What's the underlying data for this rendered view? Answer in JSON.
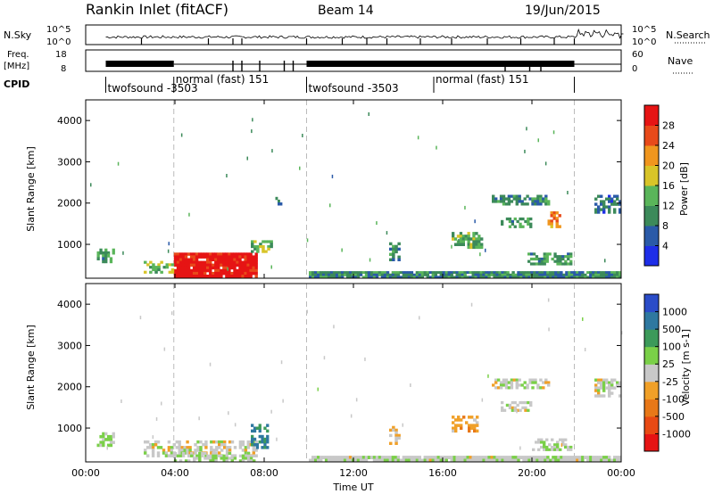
{
  "header": {
    "station": "Rankin Inlet (fitACF)",
    "beam": "Beam 14",
    "date": "19/Jun/2015"
  },
  "top_panels": {
    "nsky_label": "N.Sky",
    "nsky_ticks": [
      "10^5",
      "10^0"
    ],
    "nsearch_label": "N.Search",
    "nsearch_ticks": [
      "10^5",
      "10^0"
    ],
    "freq_label_1": "Freq.",
    "freq_label_2": "[MHz]",
    "freq_ticks": [
      "18",
      "8"
    ],
    "nave_label": "Nave",
    "nave_ticks": [
      "60",
      "0"
    ],
    "cpid_label": "CPID",
    "cpid_segments": [
      {
        "label": "twofsound -3503",
        "start": 0.9,
        "end": 3.95
      },
      {
        "label": "normal (fast) 151",
        "start": 3.95,
        "end": 9.9
      },
      {
        "label": "twofsound -3503",
        "start": 9.9,
        "end": 15.6
      },
      {
        "label": "normal (fast) 151",
        "start": 15.6,
        "end": 21.9
      }
    ]
  },
  "chart_data": [
    {
      "type": "heatmap",
      "title": "Power",
      "ylabel": "Slant Range [km]",
      "xlim": [
        0,
        24
      ],
      "ylim": [
        180,
        4500
      ],
      "yticks": [
        "1000",
        "2000",
        "3000",
        "4000"
      ],
      "colorbar_label": "Power [dB]",
      "colorbar_ticks": [
        "4",
        "8",
        "12",
        "16",
        "20",
        "24",
        "28"
      ],
      "colorbar_range": [
        0,
        30
      ],
      "colors": [
        "#1e2ee8",
        "#2a5aa8",
        "#3c8a5a",
        "#5ab55a",
        "#d8c428",
        "#f0961e",
        "#e84a1a",
        "#e61414"
      ],
      "regions": [
        {
          "t0": 3.95,
          "t1": 7.7,
          "r0": 200,
          "r1": 800,
          "value": 29
        },
        {
          "t0": 2.6,
          "t1": 3.95,
          "r0": 300,
          "r1": 600,
          "value": 14
        },
        {
          "t0": 0.5,
          "t1": 1.3,
          "r0": 550,
          "r1": 900,
          "value": 11
        },
        {
          "t0": 7.4,
          "t1": 8.5,
          "r0": 800,
          "r1": 1100,
          "value": 13
        },
        {
          "t0": 8.5,
          "t1": 8.8,
          "r0": 1950,
          "r1": 2150,
          "value": 8
        },
        {
          "t0": 13.6,
          "t1": 14.1,
          "r0": 600,
          "r1": 1050,
          "value": 10
        },
        {
          "t0": 16.4,
          "t1": 17.8,
          "r0": 900,
          "r1": 1300,
          "value": 12
        },
        {
          "t0": 18.2,
          "t1": 20.8,
          "r0": 1950,
          "r1": 2200,
          "value": 9
        },
        {
          "t0": 18.6,
          "t1": 20.0,
          "r0": 1400,
          "r1": 1650,
          "value": 11
        },
        {
          "t0": 20.7,
          "t1": 21.3,
          "r0": 1400,
          "r1": 1800,
          "value": 21
        },
        {
          "t0": 22.8,
          "t1": 24.0,
          "r0": 1750,
          "r1": 2200,
          "value": 7
        },
        {
          "t0": 19.8,
          "t1": 21.8,
          "r0": 500,
          "r1": 800,
          "value": 11
        },
        {
          "t0": 10.0,
          "t1": 24.0,
          "r0": 180,
          "r1": 350,
          "value": 9
        }
      ]
    },
    {
      "type": "heatmap",
      "title": "Velocity",
      "ylabel": "Slant Range [km]",
      "xlabel": "Time UT",
      "xlim": [
        0,
        24
      ],
      "ylim": [
        180,
        4500
      ],
      "xticks": [
        "00:00",
        "04:00",
        "08:00",
        "12:00",
        "16:00",
        "20:00",
        "00:00"
      ],
      "yticks": [
        "1000",
        "2000",
        "3000",
        "4000"
      ],
      "colorbar_label": "Velocity [m s-1]",
      "colorbar_ticks": [
        "1000",
        "500",
        "100",
        "25",
        "-25",
        "-100",
        "-500",
        "-1000"
      ],
      "colorbar_range": [
        -1200,
        1200
      ],
      "colors": [
        "#2a4cc8",
        "#2e78a0",
        "#3c9a5a",
        "#7ad048",
        "#c8c8c8",
        "#f0a028",
        "#e87818",
        "#e84a14",
        "#e61414"
      ],
      "regions": [
        {
          "t0": 2.6,
          "t1": 7.7,
          "r0": 300,
          "r1": 700,
          "value": 0
        },
        {
          "t0": 3.95,
          "t1": 7.6,
          "r0": 180,
          "r1": 420,
          "value": 120
        },
        {
          "t0": 0.5,
          "t1": 1.3,
          "r0": 550,
          "r1": 900,
          "value": 200
        },
        {
          "t0": 7.4,
          "t1": 8.2,
          "r0": 500,
          "r1": 1100,
          "value": 700
        },
        {
          "t0": 13.6,
          "t1": 14.1,
          "r0": 600,
          "r1": 1050,
          "value": -150
        },
        {
          "t0": 16.4,
          "t1": 17.6,
          "r0": 900,
          "r1": 1300,
          "value": -300
        },
        {
          "t0": 18.2,
          "t1": 20.8,
          "r0": 1950,
          "r1": 2200,
          "value": 10
        },
        {
          "t0": 18.6,
          "t1": 20.0,
          "r0": 1400,
          "r1": 1650,
          "value": -10
        },
        {
          "t0": 22.8,
          "t1": 24.0,
          "r0": 1750,
          "r1": 2200,
          "value": 5
        },
        {
          "t0": 20.0,
          "t1": 21.8,
          "r0": 450,
          "r1": 750,
          "value": 80
        },
        {
          "t0": 10.0,
          "t1": 24.0,
          "r0": 180,
          "r1": 330,
          "value": 60
        }
      ]
    }
  ]
}
